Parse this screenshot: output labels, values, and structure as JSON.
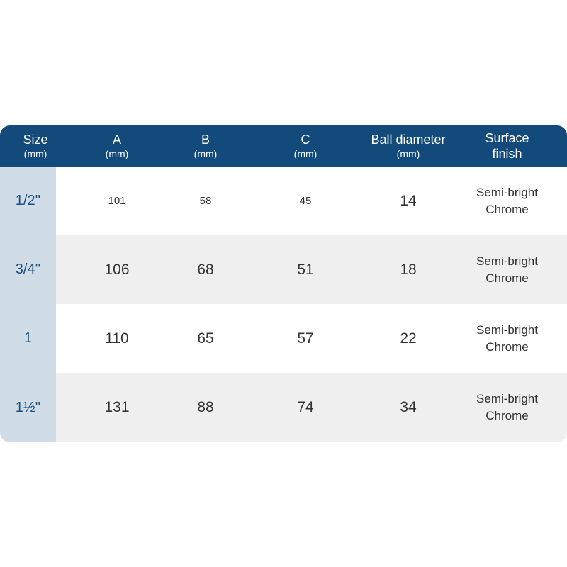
{
  "header": {
    "size": {
      "title": "Size",
      "unit": "(mm)"
    },
    "a": {
      "title": "A",
      "unit": "(mm)"
    },
    "b": {
      "title": "B",
      "unit": "(mm)"
    },
    "c": {
      "title": "C",
      "unit": "(mm)"
    },
    "ball": {
      "title": "Ball diameter",
      "unit": "(mm)"
    },
    "finish": {
      "title": "Surface",
      "title2": "finish"
    }
  },
  "rows": [
    {
      "size": "1/2''",
      "a": "101",
      "b": "58",
      "c": "45",
      "ball": "14",
      "finish1": "Semi-bright",
      "finish2": "Chrome"
    },
    {
      "size": "3/4''",
      "a": "106",
      "b": "68",
      "c": "51",
      "ball": "18",
      "finish1": "Semi-bright",
      "finish2": "Chrome"
    },
    {
      "size": "1",
      "a": "110",
      "b": "65",
      "c": "57",
      "ball": "22",
      "finish1": "Semi-bright",
      "finish2": "Chrome"
    },
    {
      "size": "1½''",
      "a": "131",
      "b": "88",
      "c": "74",
      "ball": "34",
      "finish1": "Semi-bright",
      "finish2": "Chrome"
    }
  ]
}
